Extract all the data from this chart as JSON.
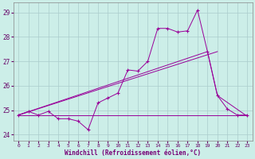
{
  "xlabel": "Windchill (Refroidissement éolien,°C)",
  "bg_color": "#cceee8",
  "grid_color": "#aacccc",
  "line_color": "#990099",
  "xlim": [
    -0.5,
    23.5
  ],
  "ylim": [
    23.75,
    29.4
  ],
  "yticks": [
    24,
    25,
    26,
    27,
    28,
    29
  ],
  "xticks": [
    0,
    1,
    2,
    3,
    4,
    5,
    6,
    7,
    8,
    9,
    10,
    11,
    12,
    13,
    14,
    15,
    16,
    17,
    18,
    19,
    20,
    21,
    22,
    23
  ],
  "series1_x": [
    0,
    1,
    2,
    3,
    4,
    5,
    6,
    7,
    8,
    9,
    10,
    11,
    12,
    13,
    14,
    15,
    16,
    17,
    18,
    19,
    20,
    21,
    22,
    23
  ],
  "series1_y": [
    24.8,
    24.95,
    24.8,
    24.95,
    24.65,
    24.65,
    24.55,
    24.2,
    25.3,
    25.5,
    25.7,
    26.65,
    26.6,
    27.0,
    28.35,
    28.35,
    28.2,
    28.25,
    29.1,
    27.4,
    25.6,
    25.05,
    24.8,
    24.8
  ],
  "series2_x": [
    0,
    23
  ],
  "series2_y": [
    24.8,
    24.8
  ],
  "series3_x": [
    0,
    19,
    20,
    23
  ],
  "series3_y": [
    24.8,
    27.4,
    25.6,
    24.75
  ],
  "series4_x": [
    0,
    20
  ],
  "series4_y": [
    24.8,
    27.4
  ],
  "series5_x": [
    0,
    23
  ],
  "series5_y": [
    24.8,
    24.75
  ]
}
